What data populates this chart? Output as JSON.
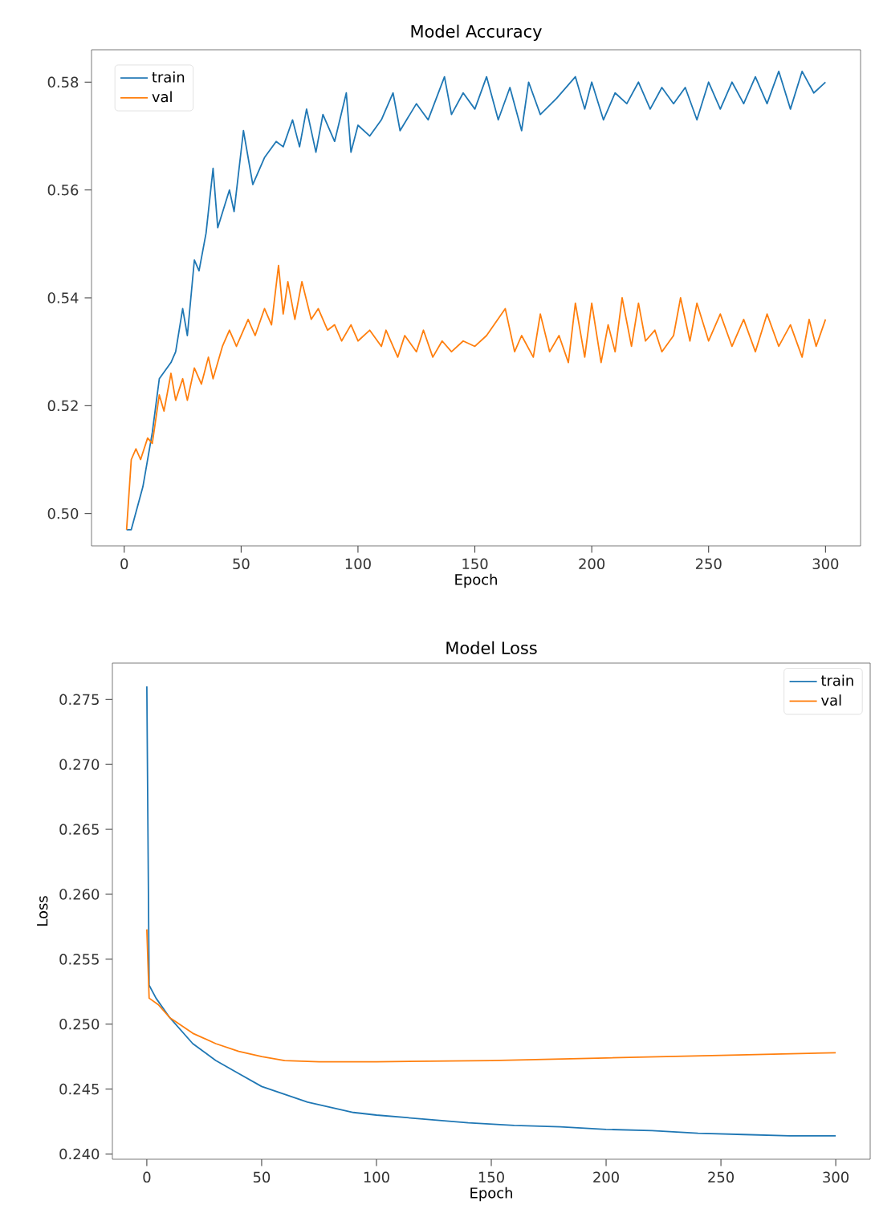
{
  "chart_data": [
    {
      "type": "line",
      "title": "Model Accuracy",
      "xlabel": "Epoch",
      "legend": "top left",
      "grid": false,
      "xlim": [
        -14,
        315
      ],
      "ylim": [
        0.494,
        0.586
      ],
      "xticks": [
        0,
        50,
        100,
        150,
        200,
        250,
        300
      ],
      "yticks": [
        {
          "value": 0.5,
          "label": "0.50"
        },
        0.52,
        0.54,
        0.56,
        0.58
      ],
      "series": [
        {
          "name": "train",
          "color": "#1f77b4",
          "x": [
            1,
            3,
            8,
            12,
            15,
            20,
            22,
            25,
            27,
            30,
            32,
            35,
            38,
            40,
            45,
            47,
            51,
            55,
            60,
            65,
            68,
            72,
            75,
            78,
            82,
            85,
            90,
            95,
            97,
            100,
            105,
            110,
            115,
            118,
            125,
            130,
            137,
            140,
            145,
            150,
            155,
            160,
            165,
            170,
            173,
            178,
            185,
            193,
            197,
            200,
            205,
            210,
            215,
            220,
            225,
            230,
            235,
            240,
            245,
            250,
            255,
            260,
            265,
            270,
            275,
            280,
            285,
            290,
            295,
            300
          ],
          "values": [
            0.497,
            0.497,
            0.505,
            0.515,
            0.525,
            0.528,
            0.53,
            0.538,
            0.533,
            0.547,
            0.545,
            0.552,
            0.564,
            0.553,
            0.56,
            0.556,
            0.571,
            0.561,
            0.566,
            0.569,
            0.568,
            0.573,
            0.568,
            0.575,
            0.567,
            0.574,
            0.569,
            0.578,
            0.567,
            0.572,
            0.57,
            0.573,
            0.578,
            0.571,
            0.576,
            0.573,
            0.581,
            0.574,
            0.578,
            0.575,
            0.581,
            0.573,
            0.579,
            0.571,
            0.58,
            0.574,
            0.577,
            0.581,
            0.575,
            0.58,
            0.573,
            0.578,
            0.576,
            0.58,
            0.575,
            0.579,
            0.576,
            0.579,
            0.573,
            0.58,
            0.575,
            0.58,
            0.576,
            0.581,
            0.576,
            0.582,
            0.575,
            0.582,
            0.578,
            0.58
          ]
        },
        {
          "name": "val",
          "color": "#ff7f0e",
          "x": [
            1,
            3,
            5,
            7,
            10,
            12,
            15,
            17,
            20,
            22,
            25,
            27,
            30,
            33,
            36,
            38,
            42,
            45,
            48,
            53,
            56,
            60,
            63,
            66,
            68,
            70,
            73,
            76,
            80,
            83,
            87,
            90,
            93,
            97,
            100,
            105,
            110,
            112,
            117,
            120,
            125,
            128,
            132,
            136,
            140,
            145,
            150,
            155,
            163,
            167,
            170,
            175,
            178,
            182,
            186,
            190,
            193,
            197,
            200,
            204,
            207,
            210,
            213,
            217,
            220,
            223,
            227,
            230,
            235,
            238,
            242,
            245,
            250,
            255,
            260,
            265,
            270,
            275,
            280,
            285,
            290,
            293,
            296,
            300
          ],
          "values": [
            0.497,
            0.51,
            0.512,
            0.51,
            0.514,
            0.513,
            0.522,
            0.519,
            0.526,
            0.521,
            0.525,
            0.521,
            0.527,
            0.524,
            0.529,
            0.525,
            0.531,
            0.534,
            0.531,
            0.536,
            0.533,
            0.538,
            0.535,
            0.546,
            0.537,
            0.543,
            0.536,
            0.543,
            0.536,
            0.538,
            0.534,
            0.535,
            0.532,
            0.535,
            0.532,
            0.534,
            0.531,
            0.534,
            0.529,
            0.533,
            0.53,
            0.534,
            0.529,
            0.532,
            0.53,
            0.532,
            0.531,
            0.533,
            0.538,
            0.53,
            0.533,
            0.529,
            0.537,
            0.53,
            0.533,
            0.528,
            0.539,
            0.529,
            0.539,
            0.528,
            0.535,
            0.53,
            0.54,
            0.531,
            0.539,
            0.532,
            0.534,
            0.53,
            0.533,
            0.54,
            0.532,
            0.539,
            0.532,
            0.537,
            0.531,
            0.536,
            0.53,
            0.537,
            0.531,
            0.535,
            0.529,
            0.536,
            0.531,
            0.536
          ]
        }
      ]
    },
    {
      "type": "line",
      "title": "Model Loss",
      "xlabel": "Epoch",
      "ylabel": "Loss",
      "legend": "top right",
      "grid": false,
      "xlim": [
        -15,
        315
      ],
      "ylim": [
        0.2396,
        0.2778
      ],
      "xticks": [
        0,
        50,
        100,
        150,
        200,
        250,
        300
      ],
      "yticks": [
        {
          "value": 0.24,
          "label": "0.240"
        },
        0.245,
        {
          "value": 0.25,
          "label": "0.250"
        },
        0.255,
        {
          "value": 0.26,
          "label": "0.260"
        },
        0.265,
        {
          "value": 0.27,
          "label": "0.270"
        },
        0.275
      ],
      "series": [
        {
          "name": "train",
          "color": "#1f77b4",
          "x": [
            0,
            1,
            4,
            10,
            15,
            20,
            30,
            40,
            50,
            60,
            70,
            80,
            90,
            100,
            120,
            140,
            160,
            180,
            200,
            220,
            240,
            260,
            280,
            300
          ],
          "values": [
            0.276,
            0.253,
            0.252,
            0.2505,
            0.2495,
            0.2485,
            0.2472,
            0.2462,
            0.2452,
            0.2446,
            0.244,
            0.2436,
            0.2432,
            0.243,
            0.2427,
            0.2424,
            0.2422,
            0.2421,
            0.2419,
            0.2418,
            0.2416,
            0.2415,
            0.2414,
            0.2414
          ]
        },
        {
          "name": "val",
          "color": "#ff7f0e",
          "x": [
            0,
            1,
            5,
            10,
            20,
            30,
            40,
            50,
            60,
            75,
            100,
            150,
            200,
            250,
            300
          ],
          "values": [
            0.2573,
            0.252,
            0.2515,
            0.2505,
            0.2493,
            0.2485,
            0.2479,
            0.2475,
            0.2472,
            0.2471,
            0.2471,
            0.2472,
            0.2474,
            0.2476,
            0.2478
          ]
        }
      ]
    }
  ]
}
